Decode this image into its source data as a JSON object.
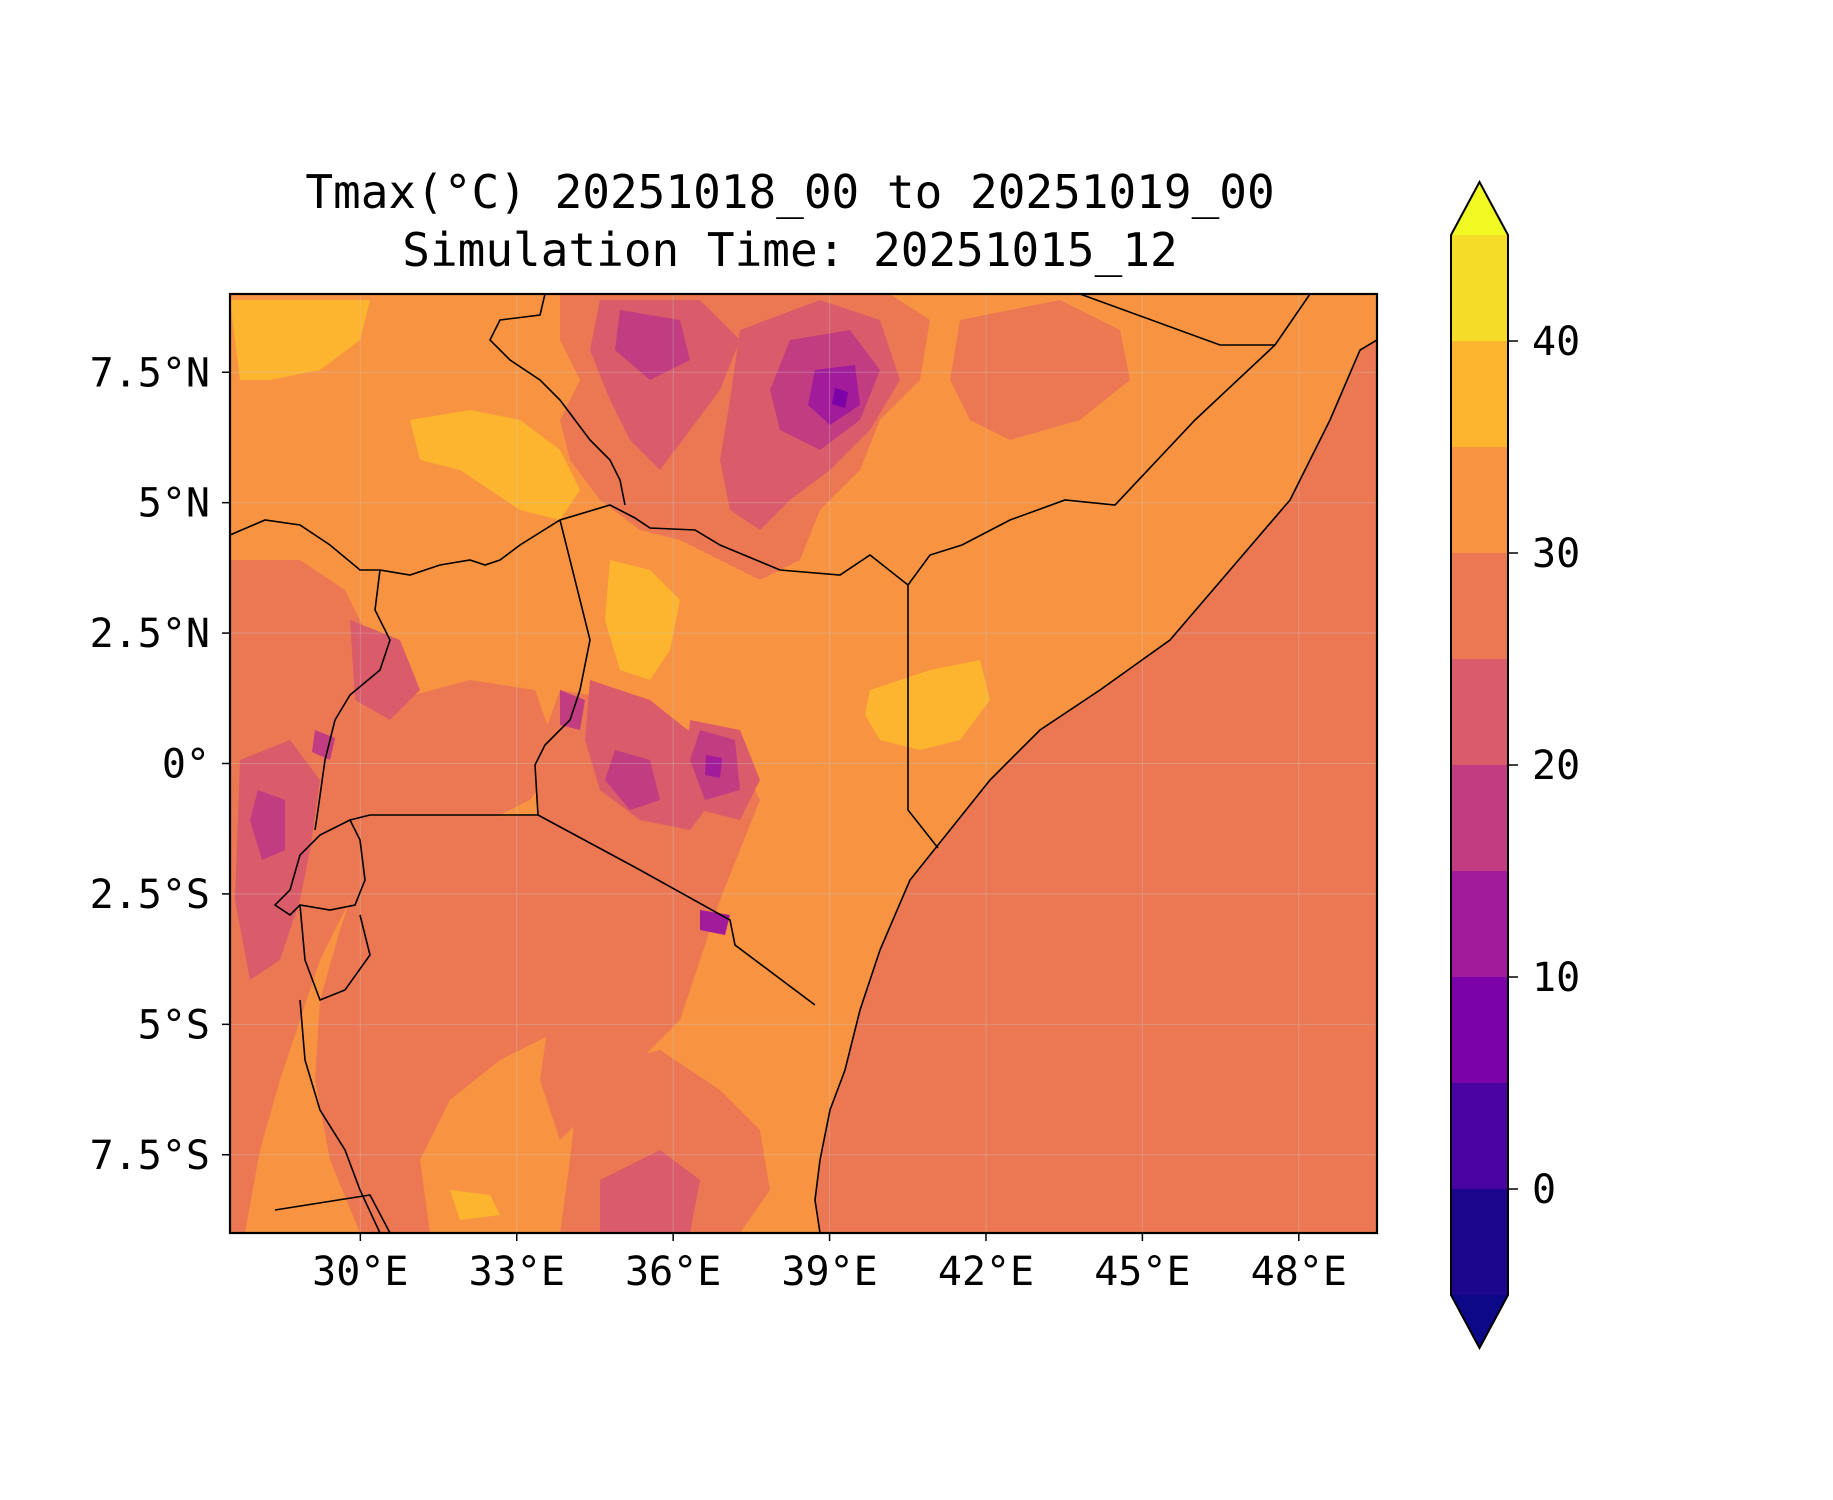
{
  "figure": {
    "title_line1": "Tmax(°C) 20251018_00 to 20251019_00",
    "title_line2": "Simulation Time: 20251015_12"
  },
  "map": {
    "lon_range": [
      27.5,
      49.5
    ],
    "lat_range": [
      -9,
      9
    ],
    "x_ticks": [
      {
        "lon": 30,
        "label": "30°E"
      },
      {
        "lon": 33,
        "label": "33°E"
      },
      {
        "lon": 36,
        "label": "36°E"
      },
      {
        "lon": 39,
        "label": "39°E"
      },
      {
        "lon": 42,
        "label": "42°E"
      },
      {
        "lon": 45,
        "label": "45°E"
      },
      {
        "lon": 48,
        "label": "48°E"
      }
    ],
    "y_ticks": [
      {
        "lat": 7.5,
        "label": "7.5°N"
      },
      {
        "lat": 5,
        "label": "5°N"
      },
      {
        "lat": 2.5,
        "label": "2.5°N"
      },
      {
        "lat": 0,
        "label": "0°"
      },
      {
        "lat": -2.5,
        "label": "2.5°S"
      },
      {
        "lat": -5,
        "label": "5°S"
      },
      {
        "lat": -7.5,
        "label": "7.5°S"
      }
    ]
  },
  "colorbar": {
    "levels": [
      -5,
      0,
      5,
      10,
      15,
      20,
      25,
      30,
      35,
      40,
      45
    ],
    "colors": [
      "#1b068d",
      "#4903a0",
      "#7a02a8",
      "#a11b9b",
      "#c23c81",
      "#da5b69",
      "#ec7853",
      "#f89441",
      "#fdb42f",
      "#f5dc26"
    ],
    "under_color": "#0d0887",
    "over_color": "#f0f921",
    "tick_labels": [
      {
        "value": 0,
        "label": "0"
      },
      {
        "value": 10,
        "label": "10"
      },
      {
        "value": 20,
        "label": "20"
      },
      {
        "value": 30,
        "label": "30"
      },
      {
        "value": 40,
        "label": "40"
      }
    ]
  }
}
